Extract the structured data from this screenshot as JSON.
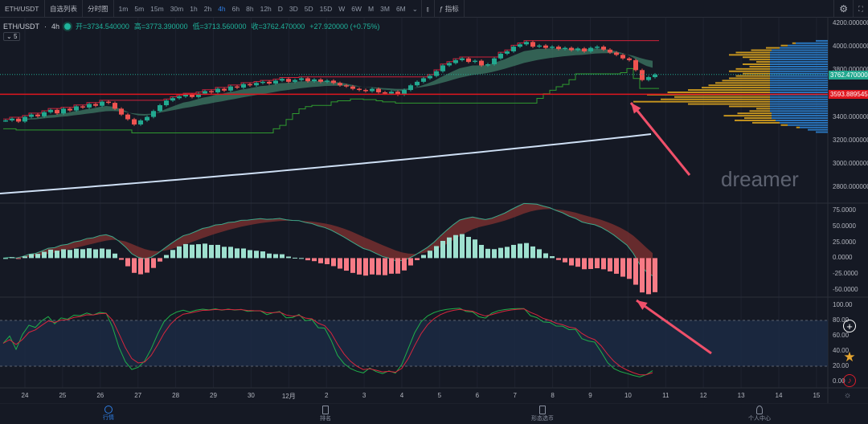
{
  "toolbar": {
    "symbol": "ETH/USDT",
    "watchlist": "自选列表",
    "timeline": "分时图",
    "intervals": [
      "1m",
      "5m",
      "15m",
      "30m",
      "1h",
      "2h",
      "4h",
      "6h",
      "8h",
      "12h",
      "D",
      "3D",
      "5D",
      "15D",
      "W",
      "6W",
      "M",
      "3M",
      "6M"
    ],
    "active_interval": "4h",
    "indicators": "指标"
  },
  "info": {
    "symbol": "ETH/USDT",
    "interval": "4h",
    "open": "开=3734.540000",
    "high": "高=3773.390000",
    "low": "低=3713.560000",
    "close": "收=3762.470000",
    "change": "+27.920000 (+0.75%)",
    "collapse": "5"
  },
  "price_axis": [
    "4200.000000",
    "4000.000000",
    "3800.000000",
    "3400.000000",
    "3200.000000",
    "3000.000000",
    "2800.000000"
  ],
  "last_price": "3762.470000",
  "level_price": "3593.889545",
  "macd_axis": [
    "75.0000",
    "50.0000",
    "25.0000",
    "0.0000",
    "-25.0000",
    "-50.0000"
  ],
  "osc_axis": [
    "100.00",
    "80.00",
    "60.00",
    "40.00",
    "20.00",
    "0.00"
  ],
  "dates": [
    "24",
    "25",
    "26",
    "27",
    "28",
    "29",
    "30",
    "12月",
    "2",
    "3",
    "4",
    "5",
    "6",
    "7",
    "8",
    "9",
    "10",
    "11",
    "12",
    "13",
    "14",
    "15"
  ],
  "watermark": "dreamer",
  "colors": {
    "up": "#22a88f",
    "down": "#ef5350",
    "level": "#e0161e",
    "accent": "#2f7de1",
    "profile_blue": "#2a78c2",
    "profile_gold": "#c9971f"
  },
  "closes": [
    3370,
    3385,
    3360,
    3400,
    3420,
    3405,
    3440,
    3460,
    3430,
    3470,
    3455,
    3490,
    3480,
    3510,
    3495,
    3530,
    3520,
    3470,
    3420,
    3380,
    3335,
    3370,
    3400,
    3450,
    3500,
    3540,
    3560,
    3575,
    3590,
    3570,
    3600,
    3620,
    3610,
    3640,
    3625,
    3660,
    3650,
    3680,
    3670,
    3690,
    3700,
    3685,
    3710,
    3725,
    3700,
    3715,
    3730,
    3705,
    3720,
    3700,
    3710,
    3690,
    3670,
    3660,
    3640,
    3630,
    3620,
    3640,
    3610,
    3600,
    3615,
    3590,
    3630,
    3670,
    3700,
    3730,
    3750,
    3790,
    3840,
    3860,
    3885,
    3900,
    3870,
    3880,
    3840,
    3850,
    3900,
    3940,
    3960,
    4000,
    4020,
    4040,
    4000,
    4010,
    3990,
    4000,
    3980,
    3990,
    3970,
    3985,
    3960,
    3990,
    4000,
    3975,
    3950,
    3930,
    3900,
    3885,
    3800,
    3715,
    3740,
    3762.47
  ],
  "volume_profile": {
    "price_from": 3260,
    "step": 20,
    "blue": [
      15,
      25,
      35,
      50,
      60,
      65,
      70,
      70,
      70,
      72,
      72,
      72,
      72,
      72,
      72,
      72,
      72,
      72,
      72,
      72,
      72,
      72,
      72,
      72,
      72,
      72,
      72,
      72,
      72,
      72,
      72,
      72,
      72,
      72,
      72,
      70,
      60,
      50,
      40,
      15
    ],
    "gold": [
      0,
      0,
      5,
      10,
      40,
      60,
      40,
      70,
      50,
      30,
      20,
      60,
      120,
      200,
      160,
      140,
      180,
      150,
      120,
      100,
      90,
      80,
      70,
      60,
      50,
      40,
      60,
      50,
      30,
      40,
      20,
      30,
      40,
      60,
      50,
      30,
      20,
      10,
      5,
      0
    ]
  },
  "bottom_nav": [
    "行情",
    "排名",
    "形态选币",
    "个人中心"
  ]
}
